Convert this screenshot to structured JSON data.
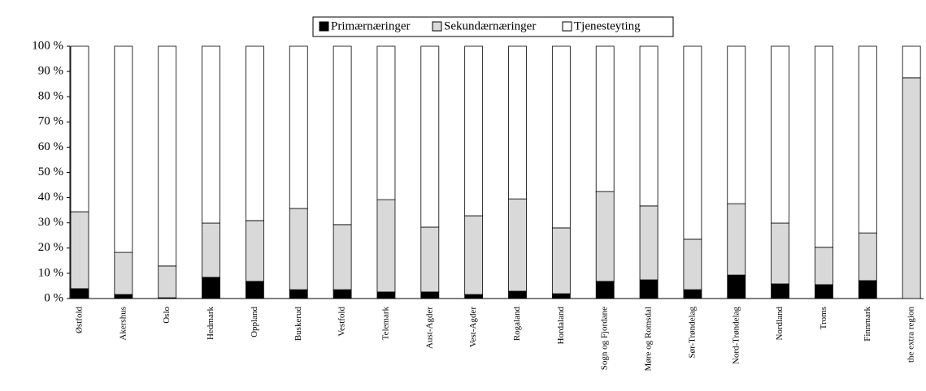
{
  "chart_data": {
    "type": "stacked-bar",
    "categories": [
      "Østfold",
      "Akershus",
      "Oslo",
      "Hedmark",
      "Oppland",
      "Buskerud",
      "Vestfold",
      "Telemark",
      "Aust-Agder",
      "Vest-Agder",
      "Rogaland",
      "Hordaland",
      "Sogn og Fjordane",
      "Møre og Romsdal",
      "Sør-Trøndelag",
      "Nord-Trøndelag",
      "Nordland",
      "Troms",
      "Finnmark",
      "the extra region"
    ],
    "series": [
      {
        "name": "Primærnæringer",
        "color": "#000000",
        "values": [
          3.9,
          1.6,
          0.3,
          8.4,
          6.8,
          3.5,
          3.5,
          2.6,
          2.6,
          1.6,
          2.9,
          1.9,
          6.8,
          7.4,
          3.5,
          9.3,
          5.8,
          5.5,
          7.1,
          0
        ]
      },
      {
        "name": "Sekundærnæringer",
        "color": "#d9d9d9",
        "values": [
          30.5,
          16.7,
          12.6,
          21.5,
          24.1,
          32.2,
          25.8,
          36.6,
          25.7,
          31.2,
          36.6,
          26.1,
          35.6,
          29.3,
          20.0,
          28.3,
          24.1,
          14.8,
          18.9,
          87.5
        ]
      },
      {
        "name": "Tjenesteyting",
        "color": "#ffffff",
        "values": [
          65.6,
          81.7,
          87.1,
          70.1,
          69.1,
          64.3,
          70.7,
          60.8,
          71.7,
          67.2,
          60.5,
          72.0,
          57.6,
          63.3,
          76.5,
          62.4,
          70.1,
          79.7,
          74.0,
          12.5
        ]
      }
    ],
    "ylim": [
      0,
      100
    ],
    "yticks": [
      {
        "value": 0,
        "label": "0 %"
      },
      {
        "value": 10,
        "label": "10 %"
      },
      {
        "value": 20,
        "label": "20 %"
      },
      {
        "value": 30,
        "label": "30 %"
      },
      {
        "value": 40,
        "label": "40 %"
      },
      {
        "value": 50,
        "label": "50 %"
      },
      {
        "value": 60,
        "label": "60 %"
      },
      {
        "value": 70,
        "label": "70 %"
      },
      {
        "value": 80,
        "label": "80 %"
      },
      {
        "value": 90,
        "label": "90 %"
      },
      {
        "value": 100,
        "label": "100 %"
      }
    ],
    "legend": "top"
  }
}
